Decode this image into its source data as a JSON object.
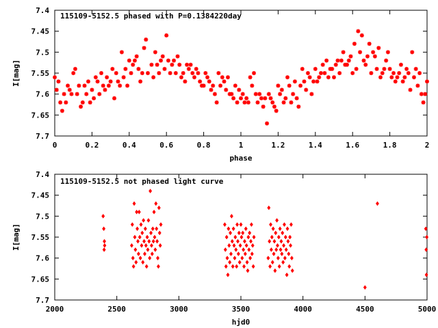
{
  "colors": {
    "points": "#ff0000",
    "axes": "#000000",
    "background": "#ffffff"
  },
  "chart_data": [
    {
      "type": "scatter",
      "title": "115109-5152.5 phased with P=0.1384220day",
      "xlabel": "phase",
      "ylabel": "I[mag]",
      "xlim": [
        0,
        2
      ],
      "ylim": [
        7.4,
        7.7
      ],
      "y_inverted": true,
      "xticks": [
        0,
        0.2,
        0.4,
        0.6,
        0.8,
        1,
        1.2,
        1.4,
        1.6,
        1.8,
        2
      ],
      "xtick_labels": [
        "0",
        "0.2",
        "0.4",
        "0.6",
        "0.8",
        "1",
        "1.2",
        "1.4",
        "1.6",
        "1.8",
        "2"
      ],
      "yticks": [
        7.4,
        7.45,
        7.5,
        7.55,
        7.6,
        7.65,
        7.7
      ],
      "ytick_labels": [
        "7.4",
        "7.45",
        "7.5",
        "7.55",
        "7.6",
        "7.65",
        "7.7"
      ],
      "grid": false,
      "marker": "star",
      "points": [
        [
          0.0,
          7.56
        ],
        [
          0.01,
          7.59
        ],
        [
          0.02,
          7.57
        ],
        [
          0.03,
          7.62
        ],
        [
          0.04,
          7.64
        ],
        [
          0.05,
          7.6
        ],
        [
          0.06,
          7.62
        ],
        [
          0.07,
          7.58
        ],
        [
          0.08,
          7.59
        ],
        [
          0.09,
          7.6
        ],
        [
          0.1,
          7.55
        ],
        [
          0.11,
          7.54
        ],
        [
          0.12,
          7.6
        ],
        [
          0.13,
          7.58
        ],
        [
          0.14,
          7.63
        ],
        [
          0.15,
          7.62
        ],
        [
          0.16,
          7.58
        ],
        [
          0.17,
          7.6
        ],
        [
          0.18,
          7.57
        ],
        [
          0.19,
          7.62
        ],
        [
          0.2,
          7.59
        ],
        [
          0.21,
          7.61
        ],
        [
          0.22,
          7.56
        ],
        [
          0.23,
          7.57
        ],
        [
          0.24,
          7.6
        ],
        [
          0.25,
          7.55
        ],
        [
          0.26,
          7.58
        ],
        [
          0.27,
          7.59
        ],
        [
          0.28,
          7.56
        ],
        [
          0.29,
          7.58
        ],
        [
          0.3,
          7.57
        ],
        [
          0.31,
          7.54
        ],
        [
          0.32,
          7.61
        ],
        [
          0.33,
          7.55
        ],
        [
          0.34,
          7.57
        ],
        [
          0.35,
          7.58
        ],
        [
          0.36,
          7.5
        ],
        [
          0.37,
          7.56
        ],
        [
          0.38,
          7.54
        ],
        [
          0.39,
          7.58
        ],
        [
          0.4,
          7.52
        ],
        [
          0.41,
          7.55
        ],
        [
          0.42,
          7.53
        ],
        [
          0.43,
          7.52
        ],
        [
          0.44,
          7.51
        ],
        [
          0.45,
          7.54
        ],
        [
          0.46,
          7.57
        ],
        [
          0.47,
          7.55
        ],
        [
          0.48,
          7.49
        ],
        [
          0.49,
          7.47
        ],
        [
          0.5,
          7.55
        ],
        [
          0.52,
          7.53
        ],
        [
          0.53,
          7.56
        ],
        [
          0.54,
          7.5
        ],
        [
          0.55,
          7.53
        ],
        [
          0.56,
          7.55
        ],
        [
          0.57,
          7.52
        ],
        [
          0.58,
          7.51
        ],
        [
          0.59,
          7.54
        ],
        [
          0.6,
          7.46
        ],
        [
          0.61,
          7.52
        ],
        [
          0.62,
          7.55
        ],
        [
          0.63,
          7.53
        ],
        [
          0.64,
          7.52
        ],
        [
          0.65,
          7.55
        ],
        [
          0.66,
          7.51
        ],
        [
          0.67,
          7.53
        ],
        [
          0.68,
          7.56
        ],
        [
          0.69,
          7.55
        ],
        [
          0.7,
          7.57
        ],
        [
          0.71,
          7.53
        ],
        [
          0.72,
          7.54
        ],
        [
          0.73,
          7.53
        ],
        [
          0.74,
          7.55
        ],
        [
          0.75,
          7.56
        ],
        [
          0.76,
          7.54
        ],
        [
          0.77,
          7.55
        ],
        [
          0.78,
          7.57
        ],
        [
          0.79,
          7.58
        ],
        [
          0.8,
          7.58
        ],
        [
          0.81,
          7.55
        ],
        [
          0.82,
          7.56
        ],
        [
          0.83,
          7.57
        ],
        [
          0.84,
          7.59
        ],
        [
          0.85,
          7.58
        ],
        [
          0.86,
          7.6
        ],
        [
          0.87,
          7.62
        ],
        [
          0.88,
          7.55
        ],
        [
          0.89,
          7.58
        ],
        [
          0.9,
          7.56
        ],
        [
          0.91,
          7.57
        ],
        [
          0.92,
          7.59
        ],
        [
          0.93,
          7.56
        ],
        [
          0.94,
          7.6
        ],
        [
          0.95,
          7.6
        ],
        [
          0.96,
          7.61
        ],
        [
          0.97,
          7.58
        ],
        [
          0.98,
          7.62
        ],
        [
          0.99,
          7.59
        ],
        [
          1.0,
          7.61
        ],
        [
          1.01,
          7.6
        ],
        [
          1.02,
          7.62
        ],
        [
          1.03,
          7.61
        ],
        [
          1.04,
          7.62
        ],
        [
          1.05,
          7.56
        ],
        [
          1.06,
          7.58
        ],
        [
          1.07,
          7.55
        ],
        [
          1.08,
          7.6
        ],
        [
          1.09,
          7.62
        ],
        [
          1.1,
          7.6
        ],
        [
          1.11,
          7.61
        ],
        [
          1.12,
          7.63
        ],
        [
          1.13,
          7.61
        ],
        [
          1.14,
          7.67
        ],
        [
          1.15,
          7.6
        ],
        [
          1.16,
          7.61
        ],
        [
          1.17,
          7.62
        ],
        [
          1.18,
          7.63
        ],
        [
          1.19,
          7.64
        ],
        [
          1.2,
          7.58
        ],
        [
          1.21,
          7.6
        ],
        [
          1.22,
          7.59
        ],
        [
          1.23,
          7.62
        ],
        [
          1.24,
          7.61
        ],
        [
          1.25,
          7.56
        ],
        [
          1.26,
          7.58
        ],
        [
          1.27,
          7.62
        ],
        [
          1.28,
          7.6
        ],
        [
          1.29,
          7.57
        ],
        [
          1.3,
          7.61
        ],
        [
          1.31,
          7.63
        ],
        [
          1.32,
          7.58
        ],
        [
          1.33,
          7.54
        ],
        [
          1.34,
          7.57
        ],
        [
          1.35,
          7.59
        ],
        [
          1.36,
          7.55
        ],
        [
          1.37,
          7.56
        ],
        [
          1.38,
          7.6
        ],
        [
          1.39,
          7.57
        ],
        [
          1.4,
          7.54
        ],
        [
          1.41,
          7.57
        ],
        [
          1.42,
          7.56
        ],
        [
          1.43,
          7.55
        ],
        [
          1.44,
          7.53
        ],
        [
          1.45,
          7.55
        ],
        [
          1.46,
          7.52
        ],
        [
          1.47,
          7.56
        ],
        [
          1.48,
          7.54
        ],
        [
          1.49,
          7.54
        ],
        [
          1.5,
          7.56
        ],
        [
          1.51,
          7.53
        ],
        [
          1.52,
          7.52
        ],
        [
          1.53,
          7.55
        ],
        [
          1.54,
          7.52
        ],
        [
          1.55,
          7.5
        ],
        [
          1.56,
          7.53
        ],
        [
          1.57,
          7.53
        ],
        [
          1.58,
          7.52
        ],
        [
          1.59,
          7.51
        ],
        [
          1.6,
          7.55
        ],
        [
          1.61,
          7.48
        ],
        [
          1.62,
          7.54
        ],
        [
          1.63,
          7.45
        ],
        [
          1.64,
          7.5
        ],
        [
          1.65,
          7.46
        ],
        [
          1.66,
          7.52
        ],
        [
          1.67,
          7.53
        ],
        [
          1.68,
          7.51
        ],
        [
          1.69,
          7.48
        ],
        [
          1.7,
          7.55
        ],
        [
          1.71,
          7.5
        ],
        [
          1.72,
          7.51
        ],
        [
          1.73,
          7.54
        ],
        [
          1.74,
          7.49
        ],
        [
          1.75,
          7.56
        ],
        [
          1.76,
          7.55
        ],
        [
          1.77,
          7.54
        ],
        [
          1.78,
          7.52
        ],
        [
          1.79,
          7.5
        ],
        [
          1.8,
          7.54
        ],
        [
          1.81,
          7.56
        ],
        [
          1.82,
          7.55
        ],
        [
          1.83,
          7.57
        ],
        [
          1.84,
          7.56
        ],
        [
          1.85,
          7.55
        ],
        [
          1.86,
          7.53
        ],
        [
          1.87,
          7.57
        ],
        [
          1.88,
          7.56
        ],
        [
          1.89,
          7.54
        ],
        [
          1.9,
          7.55
        ],
        [
          1.91,
          7.59
        ],
        [
          1.92,
          7.5
        ],
        [
          1.93,
          7.56
        ],
        [
          1.94,
          7.54
        ],
        [
          1.95,
          7.58
        ],
        [
          1.96,
          7.55
        ],
        [
          1.97,
          7.6
        ],
        [
          1.98,
          7.62
        ],
        [
          1.99,
          7.6
        ],
        [
          2.0,
          7.57
        ]
      ]
    },
    {
      "type": "scatter",
      "title": "115109-5152.5 not phased light curve",
      "xlabel": "hjd0",
      "ylabel": "I[mag]",
      "xlim": [
        2000,
        5000
      ],
      "ylim": [
        7.4,
        7.7
      ],
      "y_inverted": true,
      "xticks": [
        2000,
        2500,
        3000,
        3500,
        4000,
        4500,
        5000
      ],
      "xtick_labels": [
        "2000",
        "2500",
        "3000",
        "3500",
        "4000",
        "4500",
        "5000"
      ],
      "yticks": [
        7.4,
        7.45,
        7.5,
        7.55,
        7.6,
        7.65,
        7.7
      ],
      "ytick_labels": [
        "7.4",
        "7.45",
        "7.5",
        "7.55",
        "7.6",
        "7.65",
        "7.7"
      ],
      "grid": false,
      "marker": "diamond",
      "points": [
        [
          2390,
          7.5
        ],
        [
          2395,
          7.53
        ],
        [
          2398,
          7.58
        ],
        [
          2400,
          7.56
        ],
        [
          2402,
          7.57
        ],
        [
          2620,
          7.57
        ],
        [
          2625,
          7.52
        ],
        [
          2630,
          7.6
        ],
        [
          2635,
          7.62
        ],
        [
          2640,
          7.47
        ],
        [
          2645,
          7.55
        ],
        [
          2650,
          7.58
        ],
        [
          2655,
          7.61
        ],
        [
          2660,
          7.49
        ],
        [
          2665,
          7.53
        ],
        [
          2670,
          7.56
        ],
        [
          2675,
          7.59
        ],
        [
          2680,
          7.49
        ],
        [
          2685,
          7.55
        ],
        [
          2690,
          7.6
        ],
        [
          2695,
          7.52
        ],
        [
          2700,
          7.57
        ],
        [
          2705,
          7.54
        ],
        [
          2710,
          7.61
        ],
        [
          2715,
          7.51
        ],
        [
          2720,
          7.56
        ],
        [
          2725,
          7.59
        ],
        [
          2730,
          7.53
        ],
        [
          2735,
          7.57
        ],
        [
          2740,
          7.62
        ],
        [
          2745,
          7.55
        ],
        [
          2750,
          7.58
        ],
        [
          2755,
          7.51
        ],
        [
          2760,
          7.56
        ],
        [
          2765,
          7.6
        ],
        [
          2770,
          7.44
        ],
        [
          2775,
          7.54
        ],
        [
          2780,
          7.57
        ],
        [
          2785,
          7.59
        ],
        [
          2790,
          7.53
        ],
        [
          2795,
          7.56
        ],
        [
          2800,
          7.49
        ],
        [
          2805,
          7.55
        ],
        [
          2810,
          7.58
        ],
        [
          2815,
          7.47
        ],
        [
          2820,
          7.53
        ],
        [
          2825,
          7.56
        ],
        [
          2830,
          7.6
        ],
        [
          2835,
          7.62
        ],
        [
          2840,
          7.48
        ],
        [
          2845,
          7.54
        ],
        [
          2850,
          7.57
        ],
        [
          2855,
          7.52
        ],
        [
          3370,
          7.52
        ],
        [
          3375,
          7.58
        ],
        [
          3380,
          7.62
        ],
        [
          3385,
          7.55
        ],
        [
          3390,
          7.6
        ],
        [
          3395,
          7.64
        ],
        [
          3400,
          7.53
        ],
        [
          3405,
          7.57
        ],
        [
          3410,
          7.61
        ],
        [
          3415,
          7.54
        ],
        [
          3420,
          7.59
        ],
        [
          3425,
          7.5
        ],
        [
          3430,
          7.56
        ],
        [
          3435,
          7.62
        ],
        [
          3440,
          7.53
        ],
        [
          3445,
          7.57
        ],
        [
          3450,
          7.6
        ],
        [
          3455,
          7.55
        ],
        [
          3460,
          7.58
        ],
        [
          3465,
          7.62
        ],
        [
          3470,
          7.52
        ],
        [
          3475,
          7.56
        ],
        [
          3480,
          7.59
        ],
        [
          3485,
          7.54
        ],
        [
          3490,
          7.61
        ],
        [
          3495,
          7.57
        ],
        [
          3500,
          7.52
        ],
        [
          3505,
          7.55
        ],
        [
          3510,
          7.6
        ],
        [
          3515,
          7.54
        ],
        [
          3520,
          7.58
        ],
        [
          3525,
          7.62
        ],
        [
          3530,
          7.56
        ],
        [
          3535,
          7.59
        ],
        [
          3540,
          7.53
        ],
        [
          3545,
          7.57
        ],
        [
          3550,
          7.61
        ],
        [
          3555,
          7.63
        ],
        [
          3560,
          7.55
        ],
        [
          3565,
          7.58
        ],
        [
          3570,
          7.54
        ],
        [
          3575,
          7.6
        ],
        [
          3580,
          7.56
        ],
        [
          3585,
          7.52
        ],
        [
          3590,
          7.59
        ],
        [
          3595,
          7.57
        ],
        [
          3600,
          7.62
        ],
        [
          3605,
          7.55
        ],
        [
          3720,
          7.6
        ],
        [
          3725,
          7.48
        ],
        [
          3730,
          7.56
        ],
        [
          3735,
          7.62
        ],
        [
          3740,
          7.52
        ],
        [
          3745,
          7.58
        ],
        [
          3750,
          7.55
        ],
        [
          3755,
          7.61
        ],
        [
          3760,
          7.53
        ],
        [
          3765,
          7.59
        ],
        [
          3770,
          7.56
        ],
        [
          3775,
          7.63
        ],
        [
          3780,
          7.54
        ],
        [
          3785,
          7.58
        ],
        [
          3790,
          7.51
        ],
        [
          3795,
          7.57
        ],
        [
          3800,
          7.6
        ],
        [
          3805,
          7.55
        ],
        [
          3810,
          7.62
        ],
        [
          3815,
          7.53
        ],
        [
          3820,
          7.58
        ],
        [
          3825,
          7.56
        ],
        [
          3830,
          7.59
        ],
        [
          3835,
          7.54
        ],
        [
          3840,
          7.61
        ],
        [
          3845,
          7.57
        ],
        [
          3850,
          7.52
        ],
        [
          3855,
          7.6
        ],
        [
          3860,
          7.55
        ],
        [
          3865,
          7.58
        ],
        [
          3870,
          7.64
        ],
        [
          3875,
          7.53
        ],
        [
          3880,
          7.56
        ],
        [
          3885,
          7.59
        ],
        [
          3890,
          7.62
        ],
        [
          3895,
          7.55
        ],
        [
          3900,
          7.57
        ],
        [
          3905,
          7.52
        ],
        [
          3910,
          7.6
        ],
        [
          3915,
          7.63
        ],
        [
          4500,
          7.67
        ],
        [
          4600,
          7.47
        ],
        [
          4990,
          7.53
        ],
        [
          4993,
          7.58
        ],
        [
          4995,
          7.64
        ],
        [
          4998,
          7.55
        ]
      ]
    }
  ]
}
